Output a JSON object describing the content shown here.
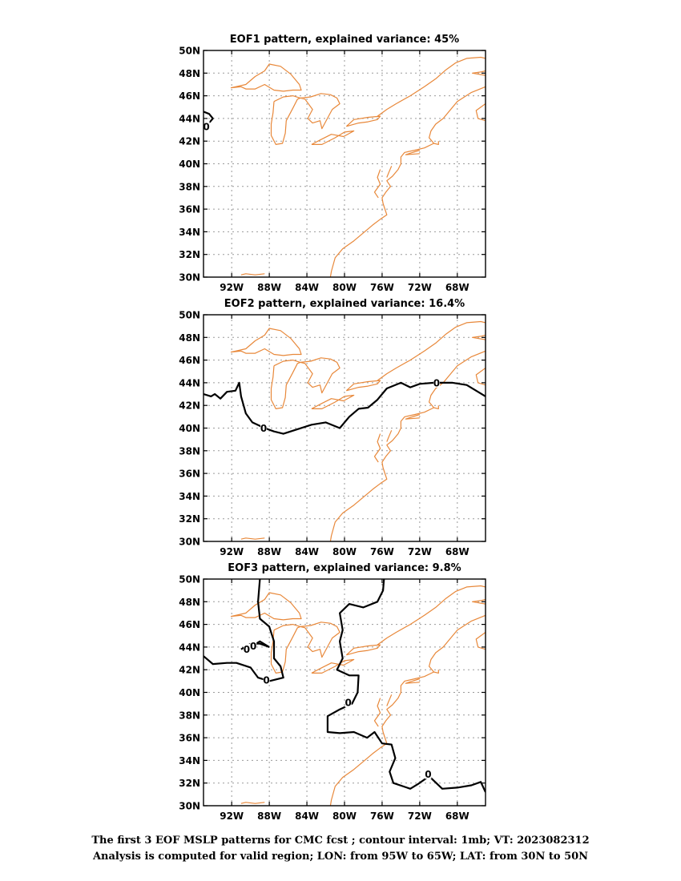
{
  "panels": [
    {
      "title": "EOF1 pattern, explained variance: 45%",
      "contour_labels": [
        "0"
      ],
      "contours": [
        [
          [
            -95.0,
            44.6
          ],
          [
            -94.4,
            44.4
          ],
          [
            -94.0,
            44.0
          ],
          [
            -94.3,
            43.7
          ],
          [
            -94.7,
            43.5
          ]
        ]
      ]
    },
    {
      "title": "EOF2 pattern, explained variance: 16.4%",
      "contour_labels": [
        "0",
        "0"
      ],
      "contours": [
        [
          [
            -95.0,
            43.0
          ],
          [
            -94.2,
            42.8
          ],
          [
            -93.8,
            43.0
          ],
          [
            -93.2,
            42.6
          ],
          [
            -92.5,
            43.2
          ],
          [
            -91.6,
            43.3
          ],
          [
            -91.2,
            44.0
          ],
          [
            -91.0,
            42.8
          ],
          [
            -90.5,
            41.3
          ],
          [
            -89.8,
            40.5
          ],
          [
            -88.5,
            40.0
          ],
          [
            -87.5,
            39.7
          ],
          [
            -86.5,
            39.5
          ],
          [
            -85.0,
            39.9
          ],
          [
            -83.5,
            40.3
          ],
          [
            -82.0,
            40.5
          ],
          [
            -80.5,
            40.0
          ],
          [
            -79.5,
            41.0
          ],
          [
            -78.5,
            41.7
          ],
          [
            -77.5,
            41.8
          ],
          [
            -76.5,
            42.5
          ],
          [
            -75.5,
            43.5
          ],
          [
            -74.0,
            44.0
          ],
          [
            -73.0,
            43.6
          ],
          [
            -72.0,
            43.9
          ],
          [
            -70.5,
            44.0
          ],
          [
            -68.5,
            44.0
          ],
          [
            -67.0,
            43.8
          ],
          [
            -66.0,
            43.3
          ],
          [
            -65.0,
            42.8
          ]
        ]
      ]
    },
    {
      "title": "EOF3 pattern, explained variance: 9.8%",
      "contour_labels": [
        "0",
        "0",
        "0",
        "0",
        "0"
      ],
      "contours": [
        [
          [
            -89.0,
            50.0
          ],
          [
            -89.2,
            48.0
          ],
          [
            -89.0,
            46.5
          ],
          [
            -88.0,
            45.8
          ],
          [
            -87.5,
            44.5
          ],
          [
            -87.5,
            43.0
          ],
          [
            -86.8,
            42.3
          ],
          [
            -86.5,
            41.3
          ],
          [
            -88.0,
            41.0
          ],
          [
            -89.2,
            41.3
          ],
          [
            -90.0,
            42.2
          ],
          [
            -91.5,
            42.6
          ],
          [
            -92.5,
            42.6
          ],
          [
            -94.0,
            42.5
          ],
          [
            -95.0,
            43.2
          ]
        ],
        [
          [
            -88.0,
            44.0
          ],
          [
            -89.0,
            44.3
          ],
          [
            -90.0,
            44.3
          ],
          [
            -91.0,
            43.8
          ]
        ],
        [
          [
            -88.0,
            44.0
          ],
          [
            -89.0,
            44.5
          ],
          [
            -89.8,
            44.1
          ]
        ],
        [
          [
            -75.8,
            50.0
          ],
          [
            -75.9,
            49.0
          ],
          [
            -76.5,
            48.0
          ],
          [
            -78.0,
            47.5
          ],
          [
            -79.5,
            47.8
          ],
          [
            -80.5,
            47.0
          ],
          [
            -80.2,
            45.5
          ],
          [
            -80.5,
            44.5
          ],
          [
            -80.2,
            43.0
          ],
          [
            -80.8,
            42.0
          ],
          [
            -79.5,
            41.5
          ],
          [
            -78.5,
            41.5
          ],
          [
            -78.6,
            40.0
          ],
          [
            -79.2,
            39.0
          ],
          [
            -80.5,
            38.5
          ],
          [
            -81.8,
            37.9
          ],
          [
            -81.8,
            36.5
          ],
          [
            -80.5,
            36.4
          ],
          [
            -79.0,
            36.5
          ],
          [
            -77.6,
            36.0
          ],
          [
            -76.8,
            36.5
          ],
          [
            -76.0,
            35.5
          ],
          [
            -75.0,
            35.4
          ],
          [
            -74.6,
            34.2
          ],
          [
            -75.2,
            33.0
          ],
          [
            -74.8,
            32.0
          ],
          [
            -73.0,
            31.5
          ],
          [
            -72.2,
            31.9
          ],
          [
            -71.0,
            32.6
          ],
          [
            -69.6,
            31.5
          ],
          [
            -68.0,
            31.6
          ],
          [
            -66.5,
            31.8
          ],
          [
            -65.5,
            32.1
          ],
          [
            -65.0,
            31.2
          ]
        ]
      ]
    }
  ],
  "coastlines": [
    [
      [
        -92.1,
        46.7
      ],
      [
        -90.5,
        47.0
      ],
      [
        -89.5,
        47.7
      ],
      [
        -88.5,
        48.2
      ],
      [
        -88.0,
        48.8
      ],
      [
        -86.8,
        48.6
      ],
      [
        -85.7,
        47.9
      ],
      [
        -84.8,
        47.0
      ],
      [
        -84.6,
        46.5
      ],
      [
        -85.5,
        46.5
      ],
      [
        -86.5,
        46.4
      ],
      [
        -87.5,
        46.5
      ],
      [
        -88.5,
        47.0
      ],
      [
        -89.5,
        46.6
      ],
      [
        -90.5,
        46.6
      ],
      [
        -91.0,
        46.8
      ],
      [
        -92.1,
        46.7
      ]
    ],
    [
      [
        -87.5,
        45.5
      ],
      [
        -87.6,
        44.5
      ],
      [
        -87.8,
        43.5
      ],
      [
        -87.8,
        42.5
      ],
      [
        -87.3,
        41.7
      ],
      [
        -86.6,
        41.8
      ],
      [
        -86.3,
        42.7
      ],
      [
        -86.2,
        43.8
      ],
      [
        -85.5,
        44.9
      ],
      [
        -85.0,
        45.7
      ],
      [
        -84.7,
        45.8
      ],
      [
        -85.5,
        46.0
      ],
      [
        -86.5,
        45.9
      ],
      [
        -87.5,
        45.5
      ]
    ],
    [
      [
        -84.7,
        45.8
      ],
      [
        -83.6,
        45.9
      ],
      [
        -82.5,
        46.2
      ],
      [
        -81.5,
        46.1
      ],
      [
        -80.8,
        45.8
      ],
      [
        -80.5,
        45.3
      ],
      [
        -81.3,
        44.8
      ],
      [
        -81.7,
        44.2
      ],
      [
        -82.4,
        43.1
      ],
      [
        -82.6,
        43.8
      ],
      [
        -83.4,
        43.6
      ],
      [
        -83.9,
        44.0
      ],
      [
        -83.4,
        44.8
      ],
      [
        -84.2,
        45.7
      ],
      [
        -84.7,
        45.8
      ]
    ],
    [
      [
        -83.5,
        41.7
      ],
      [
        -82.4,
        41.7
      ],
      [
        -81.0,
        42.3
      ],
      [
        -80.0,
        42.8
      ],
      [
        -79.0,
        42.9
      ],
      [
        -80.1,
        42.4
      ],
      [
        -81.4,
        42.6
      ],
      [
        -82.6,
        42.1
      ],
      [
        -83.5,
        41.7
      ]
    ],
    [
      [
        -79.8,
        43.3
      ],
      [
        -78.5,
        43.6
      ],
      [
        -77.5,
        43.7
      ],
      [
        -76.5,
        43.9
      ],
      [
        -76.2,
        44.2
      ],
      [
        -77.5,
        44.1
      ],
      [
        -79.0,
        43.9
      ],
      [
        -79.8,
        43.3
      ]
    ],
    [
      [
        -76.5,
        44.2
      ],
      [
        -75.5,
        44.8
      ],
      [
        -74.5,
        45.3
      ],
      [
        -73.0,
        46.0
      ],
      [
        -71.5,
        46.8
      ],
      [
        -70.3,
        47.5
      ],
      [
        -69.2,
        48.3
      ],
      [
        -68.2,
        48.9
      ],
      [
        -67.0,
        49.3
      ],
      [
        -65.5,
        49.4
      ],
      [
        -65.0,
        49.3
      ]
    ],
    [
      [
        -65.0,
        48.2
      ],
      [
        -65.5,
        48.1
      ],
      [
        -66.4,
        48.0
      ],
      [
        -65.0,
        47.8
      ]
    ],
    [
      [
        -65.0,
        46.8
      ],
      [
        -66.5,
        46.3
      ],
      [
        -68.0,
        45.5
      ],
      [
        -69.5,
        44.0
      ],
      [
        -70.3,
        43.5
      ],
      [
        -70.8,
        42.9
      ],
      [
        -71.0,
        42.3
      ],
      [
        -70.5,
        41.8
      ],
      [
        -71.5,
        41.4
      ],
      [
        -72.5,
        41.2
      ],
      [
        -73.6,
        41.0
      ],
      [
        -74.0,
        40.6
      ],
      [
        -74.0,
        40.0
      ],
      [
        -74.3,
        39.5
      ],
      [
        -74.9,
        38.9
      ],
      [
        -75.5,
        38.5
      ],
      [
        -75.1,
        38.0
      ],
      [
        -75.6,
        37.5
      ],
      [
        -76.0,
        37.0
      ],
      [
        -75.9,
        36.5
      ],
      [
        -75.5,
        35.5
      ],
      [
        -76.2,
        35.1
      ],
      [
        -77.0,
        34.6
      ],
      [
        -78.0,
        33.9
      ],
      [
        -79.0,
        33.2
      ],
      [
        -80.2,
        32.5
      ],
      [
        -81.0,
        31.7
      ],
      [
        -81.4,
        30.5
      ],
      [
        -81.5,
        30.0
      ]
    ],
    [
      [
        -76.2,
        39.5
      ],
      [
        -76.5,
        38.8
      ],
      [
        -76.2,
        38.2
      ],
      [
        -76.8,
        37.5
      ],
      [
        -76.4,
        37.0
      ]
    ],
    [
      [
        -75.0,
        39.8
      ],
      [
        -75.3,
        39.2
      ],
      [
        -75.5,
        38.8
      ]
    ],
    [
      [
        -70.5,
        41.8
      ],
      [
        -70.0,
        41.7
      ],
      [
        -70.0,
        42.0
      ]
    ],
    [
      [
        -72.0,
        41.2
      ],
      [
        -73.5,
        40.8
      ],
      [
        -72.0,
        40.9
      ]
    ],
    [
      [
        -65.0,
        45.3
      ],
      [
        -66.0,
        44.7
      ],
      [
        -65.8,
        44.0
      ],
      [
        -65.0,
        43.8
      ]
    ],
    [
      [
        -88.5,
        30.3
      ],
      [
        -89.5,
        30.2
      ],
      [
        -90.5,
        30.3
      ],
      [
        -91.0,
        30.2
      ]
    ]
  ],
  "axes": {
    "x_ticks": [
      "92W",
      "88W",
      "84W",
      "80W",
      "76W",
      "72W",
      "68W"
    ],
    "y_ticks": [
      "50N",
      "48N",
      "46N",
      "44N",
      "42N",
      "40N",
      "38N",
      "36N",
      "34N",
      "32N",
      "30N"
    ]
  },
  "caption": {
    "line1": "The first 3 EOF MSLP patterns for CMC fcst ; contour interval: 1mb; VT: 2023082312",
    "line2": "Analysis is computed for valid region; LON: from 95W to 65W; LAT: from 30N to 50N"
  }
}
